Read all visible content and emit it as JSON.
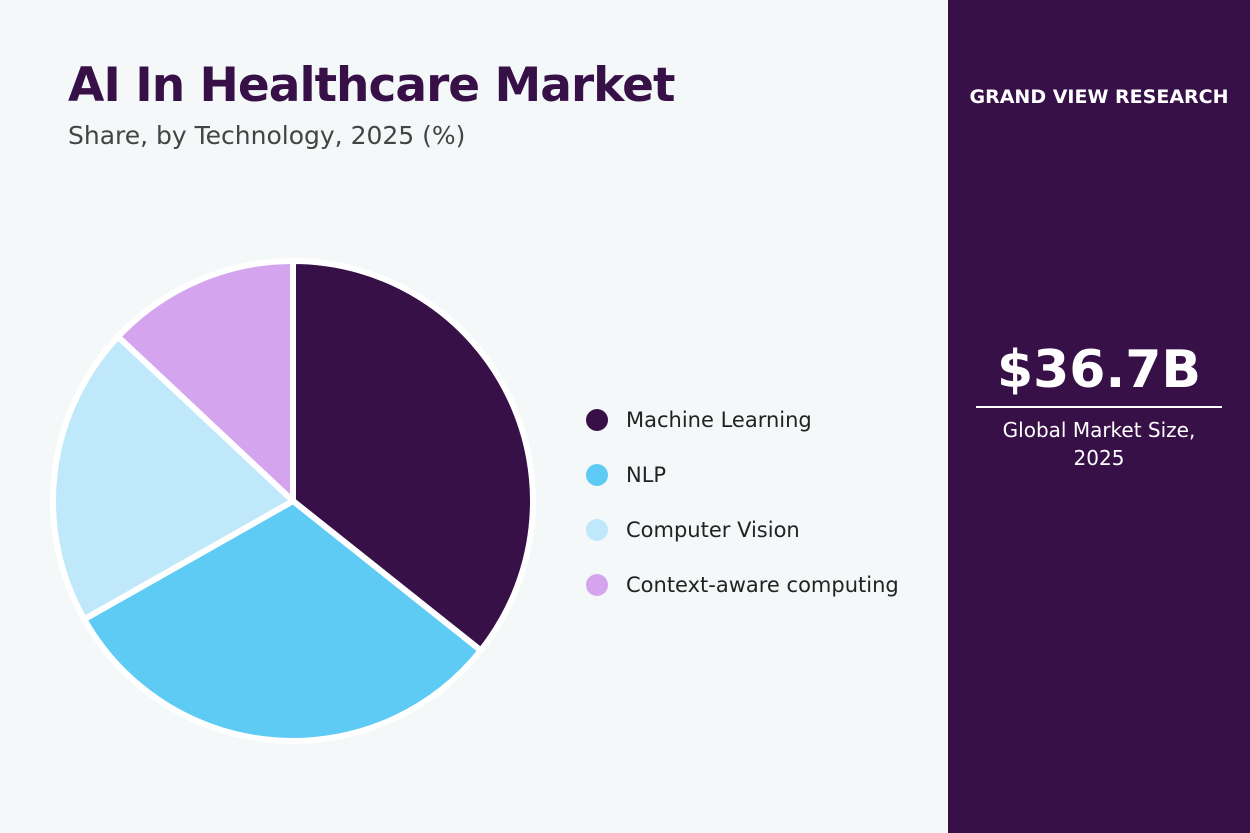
{
  "chart_data": {
    "type": "pie",
    "title": "AI In Healthcare Market",
    "subtitle": "Share, by Technology, 2025 (%)",
    "categories": [
      "Machine Learning",
      "NLP",
      "Computer Vision",
      "Context-aware computing"
    ],
    "values": [
      35.7,
      31.1,
      20.2,
      13.0
    ],
    "colors": [
      "#371047",
      "#5ecbf5",
      "#bfe8fa",
      "#d4a5ee"
    ],
    "legend_placement": "right"
  },
  "panel": {
    "brand": "GRAND VIEW RESEARCH",
    "market_size": "$36.7B",
    "caption_line1": "Global Market Size,",
    "caption_line2": "2025"
  }
}
